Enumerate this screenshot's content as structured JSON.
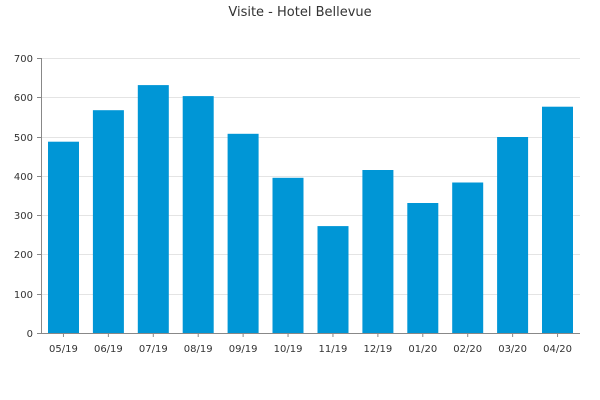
{
  "chart_data": {
    "type": "bar",
    "title": "Visite - Hotel Bellevue",
    "xlabel": "",
    "ylabel": "",
    "categories": [
      "05/19",
      "06/19",
      "07/19",
      "08/19",
      "09/19",
      "10/19",
      "11/19",
      "12/19",
      "01/20",
      "02/20",
      "03/20",
      "04/20"
    ],
    "values": [
      487,
      567,
      631,
      603,
      507,
      395,
      272,
      415,
      331,
      383,
      499,
      576
    ],
    "ylim": [
      0,
      700
    ],
    "yticks": [
      0,
      100,
      200,
      300,
      400,
      500,
      600,
      700
    ],
    "grid": true,
    "bar_color": "#0096d6"
  }
}
